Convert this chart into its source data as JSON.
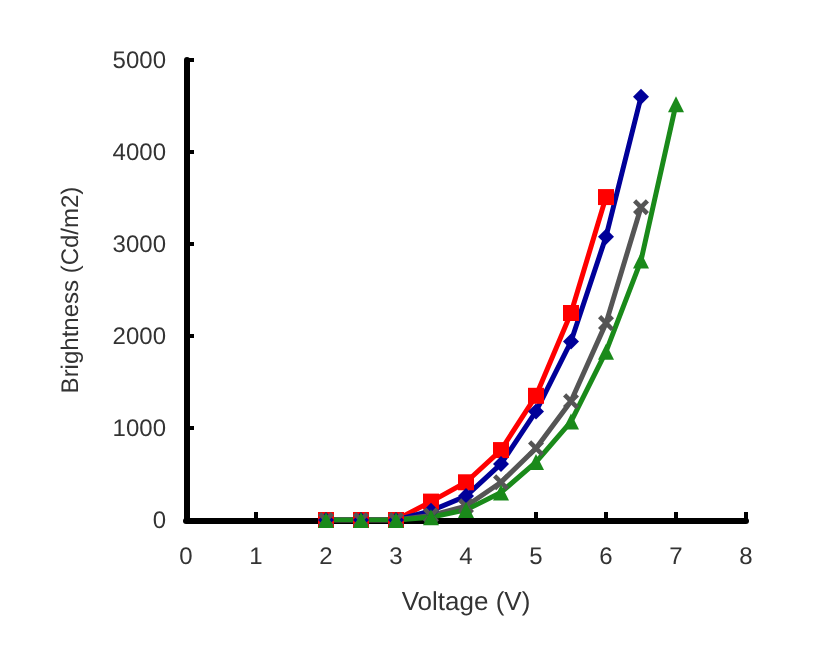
{
  "chart_data": {
    "type": "line",
    "xlabel": "Voltage (V)",
    "ylabel": "Brightness (Cd/m2)",
    "xlim": [
      0,
      8
    ],
    "xticks": [
      0,
      1,
      2,
      3,
      4,
      5,
      6,
      7,
      8
    ],
    "ylim": [
      0,
      5000
    ],
    "yticks": [
      0,
      1000,
      2000,
      3000,
      4000,
      5000
    ],
    "grid": false,
    "line_style": "solid",
    "series": [
      {
        "color": "#ff0000",
        "marker": "square",
        "x": [
          2,
          2.5,
          3,
          3.5,
          4,
          4.5,
          5,
          5.5,
          6
        ],
        "values": [
          0,
          0,
          0,
          200,
          410,
          760,
          1350,
          2250,
          3510
        ]
      },
      {
        "color": "#000099",
        "marker": "diamond",
        "x": [
          2,
          2.5,
          3,
          3.5,
          4,
          4.5,
          5,
          5.5,
          6,
          6.5
        ],
        "values": [
          0,
          0,
          0,
          100,
          260,
          610,
          1180,
          1940,
          3080,
          4600
        ]
      },
      {
        "color": "#555555",
        "marker": "cross",
        "x": [
          2,
          2.5,
          3,
          3.5,
          4,
          4.5,
          5,
          5.5,
          6,
          6.5
        ],
        "values": [
          0,
          0,
          0,
          50,
          150,
          410,
          780,
          1290,
          2140,
          3400
        ]
      },
      {
        "color": "#1a8a1a",
        "marker": "triangle",
        "x": [
          2,
          2.5,
          3,
          3.5,
          4,
          4.5,
          5,
          5.5,
          6,
          6.5,
          7
        ],
        "values": [
          0,
          0,
          0,
          30,
          110,
          300,
          630,
          1070,
          1830,
          2820,
          4520
        ]
      }
    ]
  }
}
